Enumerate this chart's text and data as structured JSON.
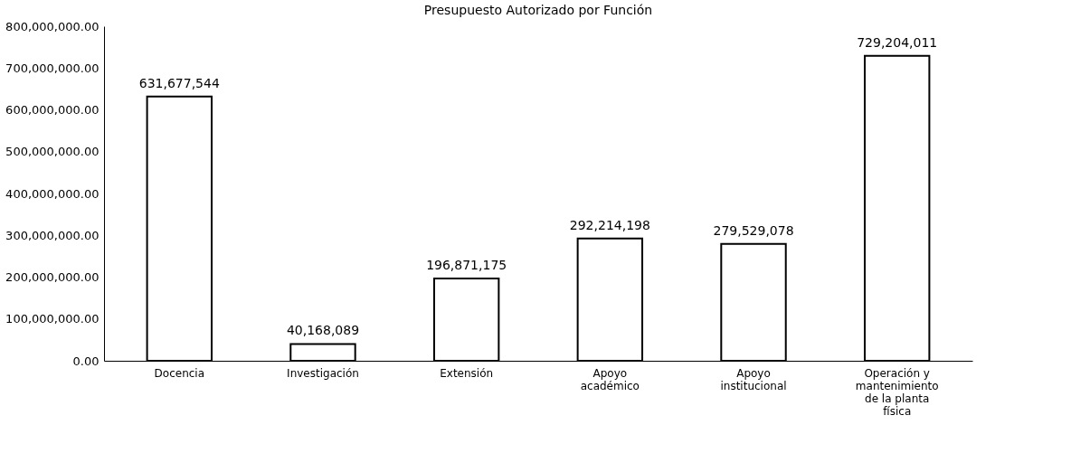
{
  "chart_data": {
    "type": "bar",
    "title": "Presupuesto Autorizado por Función",
    "categories": [
      "Docencia",
      "Investigación",
      "Extensión",
      "Apoyo académico",
      "Apoyo institucional",
      "Operación y mantenimiento de la planta física"
    ],
    "values": [
      631677544,
      40168089,
      196871175,
      292214198,
      279529078,
      729204011
    ],
    "color": "#ffffff",
    "ylim": [
      0,
      800000000
    ],
    "yticks": [
      {
        "value": 0,
        "label": "0.00"
      },
      {
        "value": 100000000,
        "label": "100,000,000.00"
      },
      {
        "value": 200000000,
        "label": "200,000,000.00"
      },
      {
        "value": 300000000,
        "label": "300,000,000.00"
      },
      {
        "value": 400000000,
        "label": "400,000,000.00"
      },
      {
        "value": 500000000,
        "label": "500,000,000.00"
      },
      {
        "value": 600000000,
        "label": "600,000,000.00"
      },
      {
        "value": 700000000,
        "label": "700,000,000.00"
      },
      {
        "value": 800000000,
        "label": "800,000,000.00"
      }
    ],
    "value_labels": [
      "631,677,544",
      "40,168,089",
      "196,871,175",
      "292,214,198",
      "279,529,078",
      "729,204,011"
    ],
    "grid": false
  }
}
